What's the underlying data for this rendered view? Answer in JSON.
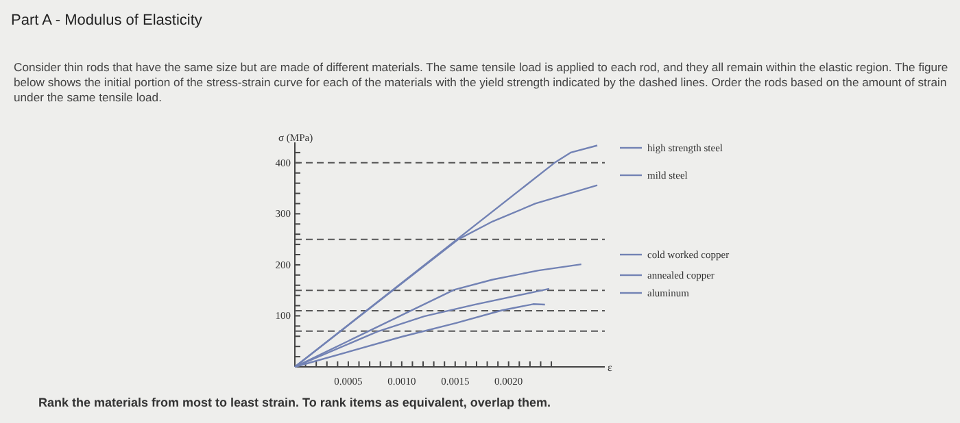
{
  "chart_data": {
    "type": "line",
    "title": "Part A - Modulus of Elasticity",
    "subtitle": "Consider thin rods that have the same size but are made of different materials. The same tensile load is applied to each rod, and they all remain within the elastic region. The figure below shows the initial portion of the stress-strain curve for each of the materials with the yield strength indicated by the dashed lines. Order the rods based on the amount of strain under the same tensile load.",
    "annotations": [
      "Rank the materials from most to least strain. To rank items as equivalent, overlap them."
    ],
    "xlabel": "ε",
    "ylabel": "σ (MPa)",
    "xlim": [
      0,
      0.0029
    ],
    "ylim": [
      0,
      440
    ],
    "xticks": [
      {
        "value": 0.0001,
        "label": null
      },
      {
        "value": 0.0002,
        "label": null
      },
      {
        "value": 0.0003,
        "label": null
      },
      {
        "value": 0.0004,
        "label": null
      },
      {
        "value": 0.0005,
        "label": "0.0005"
      },
      {
        "value": 0.0006,
        "label": null
      },
      {
        "value": 0.0007,
        "label": null
      },
      {
        "value": 0.0008,
        "label": null
      },
      {
        "value": 0.0009,
        "label": null
      },
      {
        "value": 0.001,
        "label": "0.0010"
      },
      {
        "value": 0.0011,
        "label": null
      },
      {
        "value": 0.0012,
        "label": null
      },
      {
        "value": 0.0013,
        "label": null
      },
      {
        "value": 0.0014,
        "label": null
      },
      {
        "value": 0.0015,
        "label": "0.0015"
      },
      {
        "value": 0.0016,
        "label": null
      },
      {
        "value": 0.0017,
        "label": null
      },
      {
        "value": 0.0018,
        "label": null
      },
      {
        "value": 0.0019,
        "label": null
      },
      {
        "value": 0.002,
        "label": "0.0020"
      },
      {
        "value": 0.0021,
        "label": null
      },
      {
        "value": 0.0022,
        "label": null
      },
      {
        "value": 0.0023,
        "label": null
      },
      {
        "value": 0.0024,
        "label": null
      }
    ],
    "yticks": [
      {
        "value": 20,
        "label": null
      },
      {
        "value": 40,
        "label": null
      },
      {
        "value": 60,
        "label": null
      },
      {
        "value": 80,
        "label": null
      },
      100,
      {
        "value": 120,
        "label": null
      },
      {
        "value": 140,
        "label": null
      },
      {
        "value": 160,
        "label": null
      },
      {
        "value": 180,
        "label": null
      },
      200,
      {
        "value": 220,
        "label": null
      },
      {
        "value": 240,
        "label": null
      },
      {
        "value": 260,
        "label": null
      },
      {
        "value": 280,
        "label": null
      },
      300,
      {
        "value": 320,
        "label": null
      },
      {
        "value": 340,
        "label": null
      },
      {
        "value": 360,
        "label": null
      },
      {
        "value": 380,
        "label": null
      },
      400,
      {
        "value": 420,
        "label": null
      }
    ],
    "grid": false,
    "legend": "right",
    "marker": "none",
    "line_style": "solid",
    "ref_lines": [
      {
        "axis": "y",
        "value": 400,
        "color": "#555555",
        "line_style": "dashed"
      },
      {
        "axis": "y",
        "value": 250,
        "color": "#555555",
        "line_style": "dashed"
      },
      {
        "axis": "y",
        "value": 150,
        "color": "#555555",
        "line_style": "dashed"
      },
      {
        "axis": "y",
        "value": 110,
        "color": "#555555",
        "line_style": "dashed"
      },
      {
        "axis": "y",
        "value": 70,
        "color": "#555555",
        "line_style": "dashed"
      }
    ],
    "series": [
      {
        "name": "high strength steel",
        "color": "#7282b4",
        "x": [
          0,
          0.00243,
          0.00258,
          0.00283
        ],
        "values": [
          0,
          400,
          420,
          434
        ]
      },
      {
        "name": "mild steel",
        "color": "#7282b4",
        "x": [
          0,
          0.00153,
          0.00185,
          0.00225,
          0.00283
        ],
        "values": [
          0,
          250,
          285,
          320,
          356
        ]
      },
      {
        "name": "cold worked copper",
        "color": "#7282b4",
        "x": [
          0,
          0.00149,
          0.00185,
          0.00228,
          0.00268
        ],
        "values": [
          0,
          151,
          171,
          189,
          201
        ]
      },
      {
        "name": "annealed copper",
        "color": "#7282b4",
        "x": [
          0,
          0.00077,
          0.00121,
          0.00168,
          0.00238
        ],
        "values": [
          0,
          69,
          99,
          122,
          153
        ]
      },
      {
        "name": "aluminum",
        "color": "#7282b4",
        "x": [
          0,
          0.001,
          0.00151,
          0.00194,
          0.00223,
          0.00234
        ],
        "values": [
          0,
          59,
          86,
          111,
          123,
          122
        ]
      }
    ]
  }
}
